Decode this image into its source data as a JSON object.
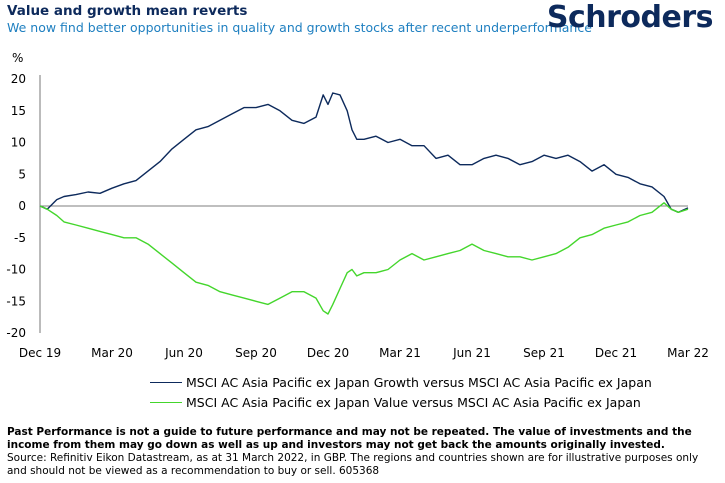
{
  "header": {
    "title": "Value and growth mean reverts",
    "subtitle": "We now find better opportunities in quality and growth stocks after recent underperformance",
    "logo": "Schroders"
  },
  "footer": {
    "disclaimer": "Past Performance is not a guide to future performance and may not be repeated. The value of investments and the income from them may go down as well as up and investors may not get back the amounts originally invested.",
    "source": "Source: Refinitiv Eikon Datastream, as at 31 March 2022, in GBP. The regions and countries shown are for illustrative purposes only and should not be viewed as a recommendation to buy or sell. 605368"
  },
  "colors": {
    "growth": "#0d2a5c",
    "value": "#44d62c",
    "title": "#0d2a5c",
    "subtitle": "#1e7fc0"
  },
  "chart_data": {
    "type": "line",
    "title": "Value and growth mean reverts",
    "ylabel": "%",
    "xlabel": "",
    "ylim": [
      -20,
      20
    ],
    "yticks": [
      20,
      15,
      10,
      5,
      0,
      -5,
      -10,
      -15,
      -20
    ],
    "xlim": [
      0,
      27
    ],
    "xtick_labels": [
      "Dec 19",
      "Mar 20",
      "Jun 20",
      "Sep 20",
      "Dec 20",
      "Mar 21",
      "Jun 21",
      "Sep 21",
      "Dec 21",
      "Mar 22"
    ],
    "grid": false,
    "legend_position": "bottom",
    "series": [
      {
        "name": "MSCI AC Asia Pacific ex Japan Growth versus MSCI AC Asia Pacific ex Japan",
        "color": "#0d2a5c",
        "x": [
          0,
          0.3,
          0.7,
          1,
          1.5,
          2,
          2.5,
          3,
          3.5,
          4,
          4.5,
          5,
          5.5,
          6,
          6.5,
          7,
          7.5,
          8,
          8.5,
          9,
          9.5,
          10,
          10.5,
          11,
          11.5,
          11.8,
          12,
          12.2,
          12.5,
          12.8,
          13,
          13.2,
          13.5,
          14,
          14.5,
          15,
          15.5,
          16,
          16.5,
          17,
          17.5,
          18,
          18.5,
          19,
          19.5,
          20,
          20.5,
          21,
          21.5,
          22,
          22.5,
          23,
          23.5,
          24,
          24.5,
          25,
          25.5,
          26,
          26.3,
          26.6,
          27
        ],
        "y": [
          0,
          -0.5,
          1.0,
          1.5,
          1.8,
          2.2,
          2.0,
          2.8,
          3.5,
          4.0,
          5.5,
          7.0,
          9.0,
          10.5,
          12.0,
          12.5,
          13.5,
          14.5,
          15.5,
          15.5,
          16.0,
          15.0,
          13.5,
          13.0,
          14.0,
          17.5,
          16.0,
          17.8,
          17.5,
          15.0,
          12.0,
          10.5,
          10.5,
          11.0,
          10.0,
          10.5,
          9.5,
          9.5,
          7.5,
          8.0,
          6.5,
          6.5,
          7.5,
          8.0,
          7.5,
          6.5,
          7.0,
          8.0,
          7.5,
          8.0,
          7.0,
          5.5,
          6.5,
          5.0,
          4.5,
          3.5,
          3.0,
          1.5,
          -0.5,
          -1.0,
          -0.3
        ]
      },
      {
        "name": "MSCI AC Asia Pacific ex Japan Value versus MSCI AC Asia Pacific ex Japan",
        "color": "#44d62c",
        "x": [
          0,
          0.3,
          0.7,
          1,
          1.5,
          2,
          2.5,
          3,
          3.5,
          4,
          4.5,
          5,
          5.5,
          6,
          6.5,
          7,
          7.5,
          8,
          8.5,
          9,
          9.5,
          10,
          10.5,
          11,
          11.5,
          11.8,
          12,
          12.2,
          12.5,
          12.8,
          13,
          13.2,
          13.5,
          14,
          14.5,
          15,
          15.5,
          16,
          16.5,
          17,
          17.5,
          18,
          18.5,
          19,
          19.5,
          20,
          20.5,
          21,
          21.5,
          22,
          22.5,
          23,
          23.5,
          24,
          24.5,
          25,
          25.5,
          26,
          26.3,
          26.6,
          27
        ],
        "y": [
          0,
          -0.5,
          -1.5,
          -2.5,
          -3.0,
          -3.5,
          -4.0,
          -4.5,
          -5.0,
          -5.0,
          -6.0,
          -7.5,
          -9.0,
          -10.5,
          -12.0,
          -12.5,
          -13.5,
          -14.0,
          -14.5,
          -15.0,
          -15.5,
          -14.5,
          -13.5,
          -13.5,
          -14.5,
          -16.5,
          -17.0,
          -15.5,
          -13.0,
          -10.5,
          -10.0,
          -11.0,
          -10.5,
          -10.5,
          -10.0,
          -8.5,
          -7.5,
          -8.5,
          -8.0,
          -7.5,
          -7.0,
          -6.0,
          -7.0,
          -7.5,
          -8.0,
          -8.0,
          -8.5,
          -8.0,
          -7.5,
          -6.5,
          -5.0,
          -4.5,
          -3.5,
          -3.0,
          -2.5,
          -1.5,
          -1.0,
          0.5,
          -0.5,
          -1.0,
          -0.5
        ]
      }
    ]
  }
}
